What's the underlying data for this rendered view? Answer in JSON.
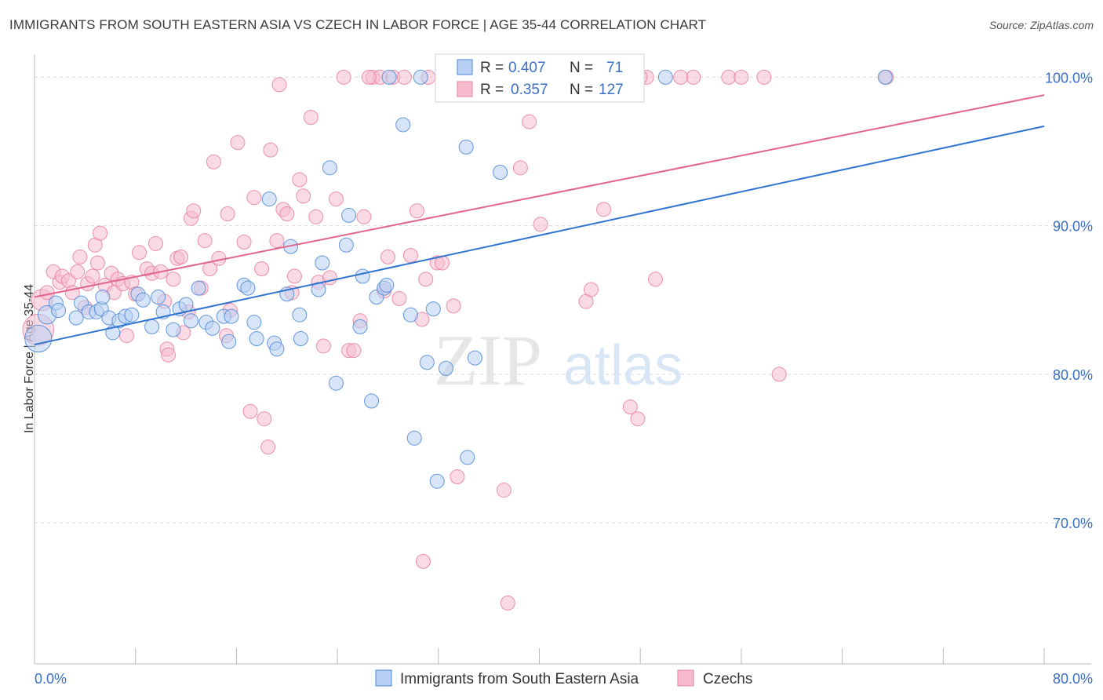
{
  "header": {
    "title": "IMMIGRANTS FROM SOUTH EASTERN ASIA VS CZECH IN LABOR FORCE | AGE 35-44 CORRELATION CHART",
    "source": "Source: ZipAtlas.com"
  },
  "watermark": {
    "zip": "ZIP",
    "atlas": "atlas"
  },
  "colors": {
    "blue": "#4a86d8",
    "blue_fill": "#b8d0f3",
    "blue_line": "#2f74d0",
    "pink": "#e87fa0",
    "pink_fill": "#f6bccd",
    "pink_line": "#e0648e",
    "axis_text": "#3a6fc4",
    "grid": "#d9d9d9"
  },
  "legend_box": {
    "rows": [
      {
        "r_label": "R = ",
        "r_value": "0.407",
        "n_label": "N = ",
        "n_value": "71"
      },
      {
        "r_label": "R = ",
        "r_value": "0.357",
        "n_label": "N = ",
        "n_value": "127"
      }
    ]
  },
  "chart_data": {
    "type": "scatter",
    "title": "IMMIGRANTS FROM SOUTH EASTERN ASIA VS CZECH IN LABOR FORCE | AGE 35-44 CORRELATION CHART",
    "xlabel": "",
    "ylabel": "In Labor Force | Age 35-44",
    "xlim": [
      0,
      80
    ],
    "ylim": [
      60.5,
      101.5
    ],
    "x_tick_labels": [
      "0.0%",
      "80.0%"
    ],
    "y_ticks": [
      70,
      80,
      90,
      100
    ],
    "y_tick_labels": [
      "70.0%",
      "80.0%",
      "90.0%",
      "100.0%"
    ],
    "grid": true,
    "legend_position": "bottom-center",
    "series": [
      {
        "name": "Immigrants from South Eastern Asia",
        "color": "#4a86d8",
        "trend": {
          "x": [
            0,
            80
          ],
          "y": [
            82.0,
            96.7
          ]
        },
        "points": [
          [
            0.3,
            82.4,
            1.9
          ],
          [
            1.0,
            84.0,
            1.3
          ],
          [
            1.7,
            84.8,
            1.0
          ],
          [
            1.9,
            84.3,
            1.0
          ],
          [
            3.3,
            83.8,
            1.0
          ],
          [
            3.7,
            84.8,
            1.0
          ],
          [
            4.3,
            84.2,
            1.0
          ],
          [
            4.9,
            84.2,
            1.0
          ],
          [
            5.3,
            84.4,
            1.0
          ],
          [
            5.4,
            85.2,
            1.0
          ],
          [
            5.9,
            83.8,
            1.0
          ],
          [
            6.2,
            82.8,
            1.0
          ],
          [
            6.7,
            83.6,
            1.0
          ],
          [
            7.2,
            83.9,
            1.0
          ],
          [
            7.7,
            84.0,
            1.0
          ],
          [
            8.2,
            85.4,
            1.0
          ],
          [
            8.6,
            85.0,
            1.0
          ],
          [
            9.3,
            83.2,
            1.0
          ],
          [
            9.8,
            85.2,
            1.0
          ],
          [
            10.2,
            84.2,
            1.0
          ],
          [
            11.0,
            83.0,
            1.0
          ],
          [
            11.5,
            84.4,
            1.0
          ],
          [
            12.0,
            84.7,
            1.0
          ],
          [
            12.4,
            83.6,
            1.0
          ],
          [
            13.0,
            85.8,
            1.0
          ],
          [
            13.6,
            83.5,
            1.0
          ],
          [
            14.1,
            83.1,
            1.0
          ],
          [
            15.0,
            83.9,
            1.0
          ],
          [
            15.4,
            82.2,
            1.0
          ],
          [
            15.6,
            83.9,
            1.0
          ],
          [
            16.6,
            86.0,
            1.0
          ],
          [
            16.9,
            85.8,
            1.0
          ],
          [
            17.4,
            83.5,
            1.0
          ],
          [
            17.6,
            82.4,
            1.0
          ],
          [
            18.6,
            91.8,
            1.0
          ],
          [
            19.0,
            82.1,
            1.0
          ],
          [
            19.2,
            81.7,
            1.0
          ],
          [
            20.0,
            85.4,
            1.0
          ],
          [
            20.3,
            88.6,
            1.0
          ],
          [
            21.0,
            84.0,
            1.0
          ],
          [
            21.1,
            82.4,
            1.0
          ],
          [
            22.5,
            85.7,
            1.0
          ],
          [
            22.8,
            87.5,
            1.0
          ],
          [
            23.4,
            93.9,
            1.0
          ],
          [
            23.9,
            79.4,
            1.0
          ],
          [
            24.7,
            88.7,
            1.0
          ],
          [
            24.9,
            90.7,
            1.0
          ],
          [
            25.8,
            83.2,
            1.0
          ],
          [
            26.0,
            86.6,
            1.0
          ],
          [
            26.7,
            78.2,
            1.0
          ],
          [
            27.1,
            85.2,
            1.0
          ],
          [
            27.7,
            85.8,
            1.0
          ],
          [
            27.9,
            86.0,
            1.0
          ],
          [
            28.1,
            100.0,
            1.0
          ],
          [
            29.2,
            96.8,
            1.0
          ],
          [
            29.8,
            84.0,
            1.0
          ],
          [
            30.1,
            75.7,
            1.0
          ],
          [
            30.6,
            100.0,
            1.0
          ],
          [
            31.1,
            80.8,
            1.0
          ],
          [
            31.6,
            84.4,
            1.0
          ],
          [
            31.9,
            72.8,
            1.0
          ],
          [
            32.6,
            80.4,
            1.0
          ],
          [
            34.2,
            95.3,
            1.0
          ],
          [
            34.3,
            74.4,
            1.0
          ],
          [
            34.9,
            81.1,
            1.0
          ],
          [
            36.9,
            93.6,
            1.0
          ],
          [
            42.9,
            100.0,
            1.0
          ],
          [
            50.0,
            100.0,
            1.0
          ],
          [
            67.4,
            100.0,
            1.0
          ],
          [
            33.0,
            100.0,
            1.0
          ],
          [
            38.0,
            100.0,
            1.0
          ]
        ]
      },
      {
        "name": "Czechs",
        "color": "#e87fa0",
        "trend": {
          "x": [
            0,
            80
          ],
          "y": [
            85.2,
            98.8
          ]
        },
        "points": [
          [
            0.3,
            83.0,
            2.2
          ],
          [
            0.6,
            85.0,
            1.5
          ],
          [
            1.0,
            85.5,
            1.0
          ],
          [
            1.5,
            86.9,
            1.0
          ],
          [
            2.0,
            86.2,
            1.0
          ],
          [
            2.2,
            86.6,
            1.0
          ],
          [
            2.7,
            86.3,
            1.0
          ],
          [
            3.0,
            85.5,
            1.0
          ],
          [
            3.4,
            86.9,
            1.0
          ],
          [
            3.6,
            87.9,
            1.0
          ],
          [
            4.0,
            84.5,
            1.0
          ],
          [
            4.2,
            86.1,
            1.0
          ],
          [
            4.6,
            86.6,
            1.0
          ],
          [
            4.8,
            88.7,
            1.0
          ],
          [
            5.0,
            87.5,
            1.0
          ],
          [
            5.2,
            89.5,
            1.0
          ],
          [
            5.6,
            86.0,
            1.0
          ],
          [
            6.1,
            86.8,
            1.0
          ],
          [
            6.3,
            85.5,
            1.0
          ],
          [
            6.6,
            86.4,
            1.0
          ],
          [
            7.0,
            86.1,
            1.0
          ],
          [
            7.3,
            82.6,
            1.0
          ],
          [
            7.7,
            86.2,
            1.0
          ],
          [
            8.0,
            85.4,
            1.0
          ],
          [
            8.3,
            88.2,
            1.0
          ],
          [
            8.9,
            87.1,
            1.0
          ],
          [
            9.3,
            86.8,
            1.0
          ],
          [
            9.6,
            88.8,
            1.0
          ],
          [
            10.0,
            86.9,
            1.0
          ],
          [
            10.3,
            84.9,
            1.0
          ],
          [
            10.5,
            81.7,
            1.0
          ],
          [
            10.6,
            81.3,
            1.0
          ],
          [
            11.0,
            86.4,
            1.0
          ],
          [
            11.3,
            87.8,
            1.0
          ],
          [
            11.6,
            87.9,
            1.0
          ],
          [
            11.8,
            82.8,
            1.0
          ],
          [
            12.2,
            84.2,
            1.0
          ],
          [
            12.4,
            90.5,
            1.0
          ],
          [
            12.6,
            91.0,
            1.0
          ],
          [
            13.2,
            85.8,
            1.0
          ],
          [
            13.5,
            89.0,
            1.0
          ],
          [
            13.9,
            87.1,
            1.0
          ],
          [
            14.2,
            94.3,
            1.0
          ],
          [
            14.6,
            87.8,
            1.0
          ],
          [
            15.2,
            82.6,
            1.0
          ],
          [
            15.5,
            84.3,
            1.0
          ],
          [
            15.3,
            90.8,
            1.0
          ],
          [
            16.1,
            95.6,
            1.0
          ],
          [
            16.6,
            88.9,
            1.0
          ],
          [
            17.1,
            77.5,
            1.0
          ],
          [
            17.4,
            91.9,
            1.0
          ],
          [
            18.0,
            87.1,
            1.0
          ],
          [
            18.2,
            77.0,
            1.0
          ],
          [
            18.5,
            75.1,
            1.0
          ],
          [
            18.7,
            95.1,
            1.0
          ],
          [
            19.2,
            89.0,
            1.0
          ],
          [
            19.4,
            99.5,
            1.0
          ],
          [
            19.7,
            91.1,
            1.0
          ],
          [
            20.0,
            90.8,
            1.0
          ],
          [
            20.4,
            85.5,
            1.0
          ],
          [
            20.6,
            86.6,
            1.0
          ],
          [
            21.0,
            93.1,
            1.0
          ],
          [
            21.3,
            92.0,
            1.0
          ],
          [
            21.9,
            97.3,
            1.0
          ],
          [
            22.3,
            90.6,
            1.0
          ],
          [
            22.5,
            86.2,
            1.0
          ],
          [
            22.9,
            81.9,
            1.0
          ],
          [
            23.4,
            86.5,
            1.0
          ],
          [
            23.9,
            91.8,
            1.0
          ],
          [
            24.5,
            100.0,
            1.0
          ],
          [
            24.9,
            81.6,
            1.0
          ],
          [
            25.3,
            81.6,
            1.0
          ],
          [
            25.8,
            83.6,
            1.0
          ],
          [
            26.1,
            90.6,
            1.0
          ],
          [
            26.8,
            100.0,
            1.0
          ],
          [
            27.4,
            100.0,
            1.0
          ],
          [
            27.7,
            85.6,
            1.0
          ],
          [
            28.0,
            87.9,
            1.0
          ],
          [
            28.4,
            100.0,
            1.0
          ],
          [
            28.9,
            85.1,
            1.0
          ],
          [
            29.3,
            100.0,
            1.0
          ],
          [
            29.8,
            88.0,
            1.0
          ],
          [
            30.3,
            91.0,
            1.0
          ],
          [
            30.7,
            83.7,
            1.0
          ],
          [
            31.0,
            86.4,
            1.0
          ],
          [
            31.2,
            100.0,
            1.0
          ],
          [
            31.9,
            87.5,
            1.0
          ],
          [
            32.3,
            87.5,
            1.0
          ],
          [
            33.2,
            84.6,
            1.0
          ],
          [
            33.5,
            73.1,
            1.0
          ],
          [
            34.1,
            100.0,
            1.0
          ],
          [
            34.8,
            100.0,
            1.0
          ],
          [
            35.0,
            100.0,
            1.0
          ],
          [
            35.6,
            100.0,
            1.0
          ],
          [
            37.2,
            72.2,
            1.0
          ],
          [
            37.9,
            100.0,
            1.0
          ],
          [
            38.5,
            93.9,
            1.0
          ],
          [
            39.2,
            97.0,
            1.0
          ],
          [
            40.1,
            90.1,
            1.0
          ],
          [
            41.0,
            100.0,
            1.0
          ],
          [
            42.0,
            98.8,
            1.0
          ],
          [
            43.7,
            84.9,
            1.0
          ],
          [
            44.1,
            85.7,
            1.0
          ],
          [
            45.1,
            91.1,
            1.0
          ],
          [
            47.2,
            77.8,
            1.0
          ],
          [
            47.8,
            77.0,
            1.0
          ],
          [
            48.5,
            100.0,
            1.0
          ],
          [
            49.2,
            86.4,
            1.0
          ],
          [
            52.2,
            100.0,
            1.0
          ],
          [
            55.0,
            100.0,
            1.0
          ],
          [
            56.0,
            100.0,
            1.0
          ],
          [
            57.8,
            100.0,
            1.0
          ],
          [
            59.0,
            80.0,
            1.0
          ],
          [
            67.5,
            100.0,
            1.0
          ],
          [
            30.8,
            67.4,
            1.0
          ],
          [
            37.5,
            64.6,
            1.0
          ],
          [
            26.5,
            100.0,
            1.0
          ],
          [
            33.0,
            100.0,
            1.0
          ],
          [
            36.2,
            100.0,
            1.0
          ],
          [
            48.0,
            100.0,
            1.0
          ],
          [
            51.2,
            100.0,
            1.0
          ]
        ]
      }
    ]
  },
  "bottom_legend": [
    {
      "label": "Immigrants from South Eastern Asia"
    },
    {
      "label": "Czechs"
    }
  ]
}
